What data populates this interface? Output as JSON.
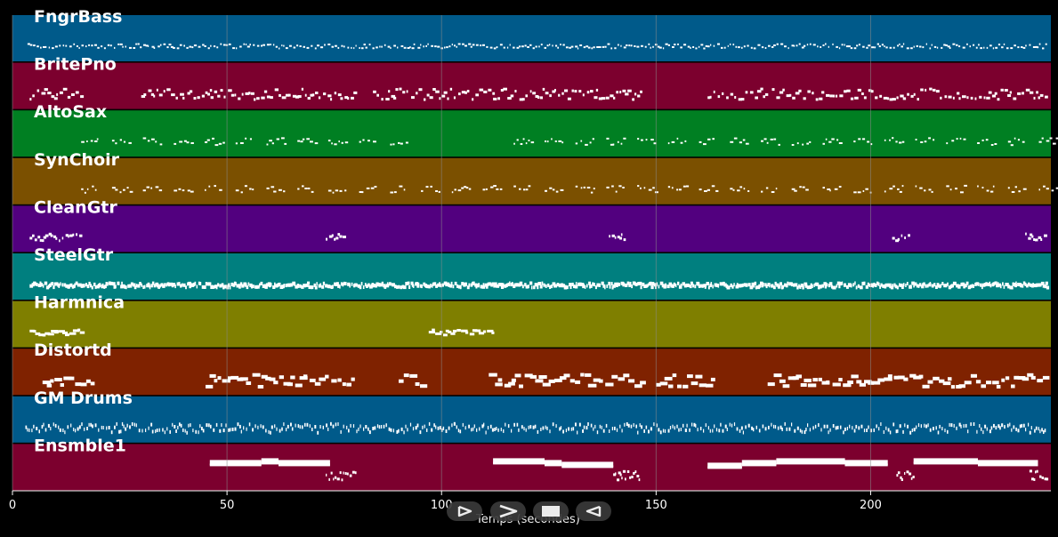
{
  "colors": {
    "background": "#000000",
    "note": "#ffffff",
    "grid": "#8a8a8a",
    "control_bg": "#3a3a3a"
  },
  "tracks": [
    {
      "name": "FngrBass",
      "color": "#005a8a",
      "pattern": "dense-low"
    },
    {
      "name": "BritePno",
      "color": "#7c002e",
      "pattern": "chords"
    },
    {
      "name": "AltoSax",
      "color": "#007f22",
      "pattern": "phrases"
    },
    {
      "name": "SynChoir",
      "color": "#7b5000",
      "pattern": "phrases"
    },
    {
      "name": "CleanGtr",
      "color": "#52007f",
      "pattern": "sparse"
    },
    {
      "name": "SteelGtr",
      "color": "#007f7f",
      "pattern": "steady"
    },
    {
      "name": "Harmnica",
      "color": "#7f7f00",
      "pattern": "two-phrases"
    },
    {
      "name": "Distortd",
      "color": "#7f2200",
      "pattern": "lead"
    },
    {
      "name": "GM Drums",
      "color": "#005a8a",
      "pattern": "drums"
    },
    {
      "name": "Ensmble1",
      "color": "#7c002e",
      "pattern": "long-notes"
    }
  ],
  "x_axis": {
    "label": "Temps (secondes)",
    "range": [
      0,
      242
    ],
    "ticks": [
      {
        "value": 0,
        "label": "0"
      },
      {
        "value": 50,
        "label": "50"
      },
      {
        "value": 100,
        "label": "100"
      },
      {
        "value": 150,
        "label": "150"
      },
      {
        "value": 200,
        "label": "200"
      }
    ],
    "grid": true
  },
  "controls": [
    {
      "name": "play-button",
      "icon": "play-icon"
    },
    {
      "name": "fast-forward-button",
      "icon": "fast-forward-icon"
    },
    {
      "name": "stop-button",
      "icon": "stop-icon"
    },
    {
      "name": "rewind-button",
      "icon": "rewind-icon"
    }
  ]
}
